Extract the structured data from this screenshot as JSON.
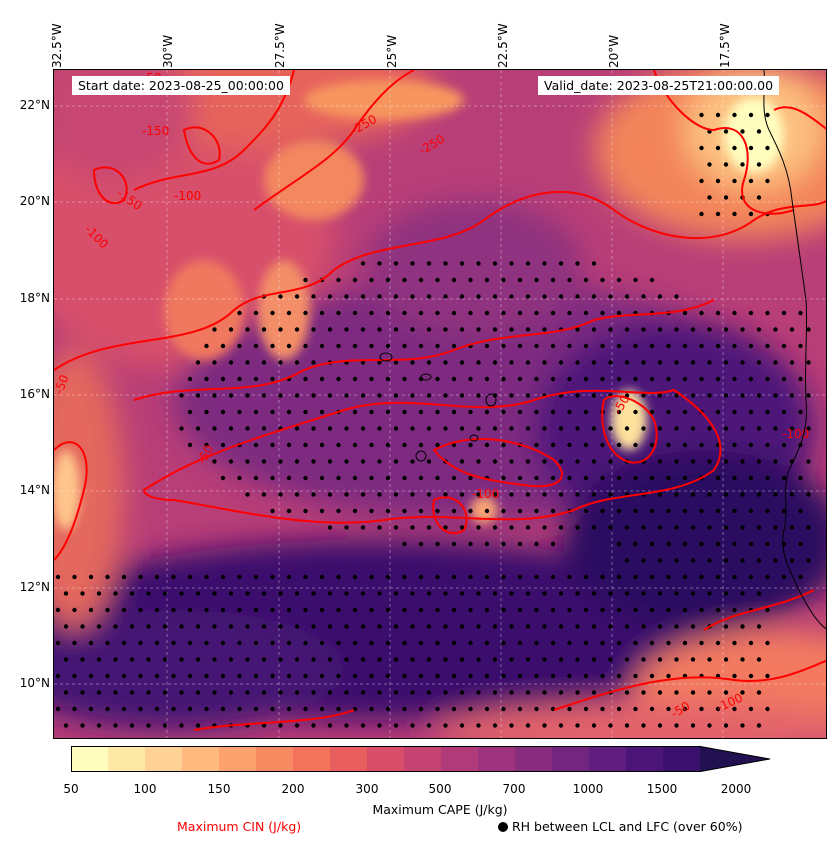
{
  "map": {
    "start_date": "Start date: 2023-08-25_00:00:00",
    "valid_date": "Valid_date: 2023-08-25T21:00:00.00",
    "lon_labels": [
      "32.5°W",
      "30°W",
      "27.5°W",
      "25°W",
      "22.5°W",
      "20°W",
      "17.5°W"
    ],
    "lat_labels": [
      "22°N",
      "20°N",
      "18°N",
      "16°N",
      "14°N",
      "12°N",
      "10°N"
    ],
    "contour_labels": [
      "-50",
      "-150",
      "-250",
      "-250",
      "-150",
      "-100",
      "-100",
      "-50",
      "-50",
      "-100",
      "-100",
      "-50",
      "-50",
      "-100"
    ],
    "region": "Eastern tropical Atlantic and West African coast",
    "colors": {
      "cin_contour": "#ff0000",
      "rh_dots": "#000000"
    }
  },
  "colorbar": {
    "ticks": [
      "50",
      "100",
      "150",
      "200",
      "300",
      "500",
      "700",
      "1000",
      "1500",
      "2000"
    ],
    "label": "Maximum CAPE (J/kg)",
    "colors": [
      "#fffec0",
      "#fee8a6",
      "#fed195",
      "#fdb97e",
      "#fba26d",
      "#f88a62",
      "#f3735c",
      "#e85e5e",
      "#d94f69",
      "#c54472",
      "#b13b79",
      "#9d347d",
      "#882c7e",
      "#73267e",
      "#5f1e7e",
      "#4b1678",
      "#39106c",
      "#221150"
    ]
  },
  "legend": {
    "cin_label": "Maximum CIN (J/kg)",
    "rh_label": "RH between LCL and LFC (over 60%)"
  }
}
